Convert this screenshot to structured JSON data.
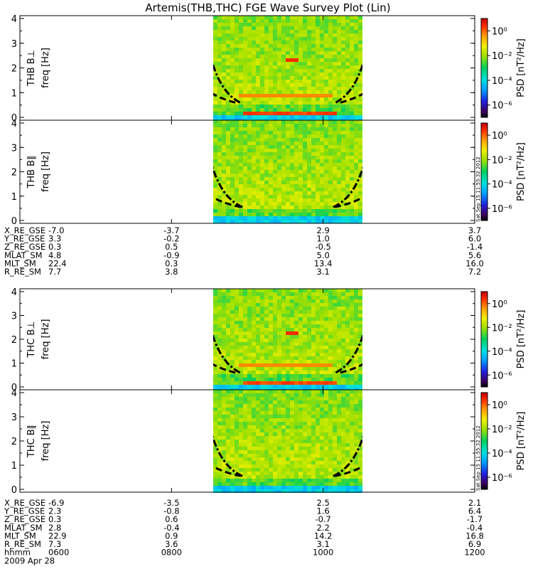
{
  "title": "Artemis(THB,THC) FGE Wave Survey Plot (Lin)",
  "colors": {
    "axis": "#000000",
    "background": "#ffffff",
    "boundary_lines": "#000000"
  },
  "chart_data": [
    {
      "type": "heatmap",
      "probe_label": "THB B⊥",
      "ylabel": "freq [Hz]",
      "yticks": [
        "0",
        "1",
        "2",
        "3",
        "4"
      ],
      "ylim": [
        0,
        4
      ],
      "colorbar_label": "PSD [nT²/Hz]",
      "colorbar_ticks": [
        "10⁰",
        "10⁻²",
        "10⁻⁴",
        "10⁻⁶"
      ],
      "colorbar_exponents": [
        0,
        -2,
        -4,
        -6
      ],
      "colorbar_range": [
        -7,
        1
      ],
      "data_time_range": [
        "0807",
        "1019"
      ],
      "boundary_curves": "dashed and dash-dot frequency curves (minimum near 1000)",
      "timestamp": ""
    },
    {
      "type": "heatmap",
      "probe_label": "THB B∥",
      "ylabel": "freq [Hz]",
      "yticks": [
        "0",
        "1",
        "2",
        "3",
        "4"
      ],
      "ylim": [
        0,
        4
      ],
      "colorbar_label": "PSD [nT²/Hz]",
      "colorbar_ticks": [
        "10⁰",
        "10⁻²",
        "10⁻⁴",
        "10⁻⁶"
      ],
      "colorbar_exponents": [
        0,
        -2,
        -4,
        -6
      ],
      "colorbar_range": [
        -7,
        1
      ],
      "timestamp": "Sat Sep 15 11:55:32 2012"
    },
    {
      "type": "heatmap",
      "probe_label": "THC B⊥",
      "ylabel": "freq [Hz]",
      "yticks": [
        "0",
        "1",
        "2",
        "3",
        "4"
      ],
      "ylim": [
        0,
        4
      ],
      "colorbar_label": "PSD [nT²/Hz]",
      "colorbar_ticks": [
        "10⁰",
        "10⁻²",
        "10⁻⁴",
        "10⁻⁶"
      ],
      "colorbar_exponents": [
        0,
        -2,
        -4,
        -6
      ],
      "colorbar_range": [
        -7,
        1
      ],
      "timestamp": ""
    },
    {
      "type": "heatmap",
      "probe_label": "THC B∥",
      "ylabel": "freq [Hz]",
      "yticks": [
        "0",
        "1",
        "2",
        "3",
        "4"
      ],
      "ylim": [
        0,
        4
      ],
      "colorbar_label": "PSD [nT²/Hz]",
      "colorbar_ticks": [
        "10⁰",
        "10⁻²",
        "10⁻⁴",
        "10⁻⁶"
      ],
      "colorbar_exponents": [
        0,
        -2,
        -4,
        -6
      ],
      "colorbar_range": [
        -7,
        1
      ],
      "timestamp": "Sat Sep 15 11:55:32 2012"
    }
  ],
  "time_axis": {
    "ticks": [
      "0600",
      "0800",
      "1000",
      "1200"
    ],
    "range": [
      "0600",
      "1200"
    ],
    "date": "2009 Apr 28",
    "label": "hhmm"
  },
  "orbit_tables": [
    {
      "rows": [
        {
          "label": "X_RE_GSE",
          "values": [
            "-7.0",
            "-3.7",
            "2.9",
            "3.7"
          ]
        },
        {
          "label": "Y_RE_GSE",
          "values": [
            "3.3",
            "-0.2",
            "1.0",
            "6.0"
          ]
        },
        {
          "label": "Z_RE_GSE",
          "values": [
            "0.3",
            "0.5",
            "-0.5",
            "-1.4"
          ]
        },
        {
          "label": "MLAT_SM",
          "values": [
            "4.8",
            "-0.9",
            "5.0",
            "5.6"
          ]
        },
        {
          "label": "MLT_SM",
          "values": [
            "22.4",
            "0.3",
            "13.4",
            "16.0"
          ]
        },
        {
          "label": "R_RE_SM",
          "values": [
            "7.7",
            "3.8",
            "3.1",
            "7.2"
          ]
        }
      ]
    },
    {
      "rows": [
        {
          "label": "X_RE_GSE",
          "values": [
            "-6.9",
            "-3.5",
            "2.5",
            "2.1"
          ]
        },
        {
          "label": "Y_RE_GSE",
          "values": [
            "2.3",
            "-0.8",
            "1.6",
            "6.4"
          ]
        },
        {
          "label": "Z_RE_GSE",
          "values": [
            "0.3",
            "0.6",
            "-0.7",
            "-1.7"
          ]
        },
        {
          "label": "MLAT_SM",
          "values": [
            "2.8",
            "-0.4",
            "2.2",
            "-0.4"
          ]
        },
        {
          "label": "MLT_SM",
          "values": [
            "22.9",
            "0.9",
            "14.2",
            "16.8"
          ]
        },
        {
          "label": "R_RE_SM",
          "values": [
            "7.3",
            "3.6",
            "3.1",
            "6.9"
          ]
        }
      ]
    }
  ]
}
